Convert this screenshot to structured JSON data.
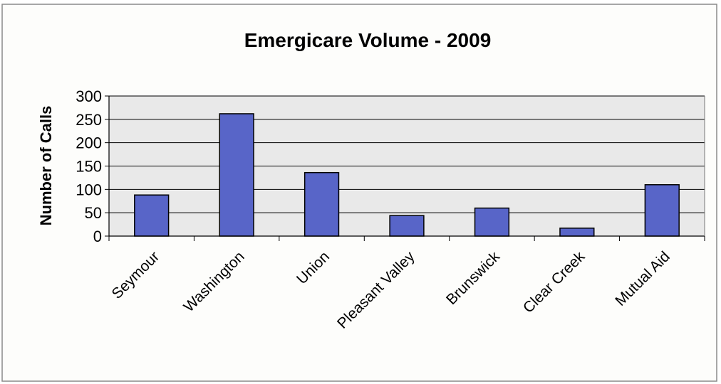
{
  "chart_data": {
    "type": "bar",
    "title": "Emergicare Volume - 2009",
    "xlabel": "",
    "ylabel": "Number of Calls",
    "categories": [
      "Seymour",
      "Washington",
      "Union",
      "Pleasant Valley",
      "Brunswick",
      "Clear Creek",
      "Mutual Aid"
    ],
    "values": [
      88,
      262,
      136,
      44,
      60,
      17,
      110
    ],
    "ylim": [
      0,
      300
    ],
    "yticks": [
      0,
      50,
      100,
      150,
      200,
      250,
      300
    ],
    "grid": true,
    "legend": "none",
    "colors": {
      "bar_fill": "#5865c8",
      "bar_stroke": "#000000",
      "plot_background": "#e9e9e9",
      "gridline": "#000000",
      "frame_border": "#8a8a8a"
    }
  }
}
